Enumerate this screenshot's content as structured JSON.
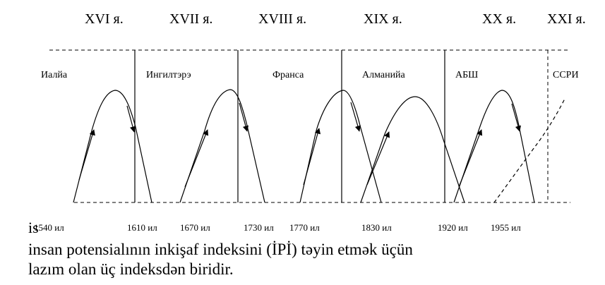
{
  "centuries": [
    "XVI я.",
    "XVII я.",
    "XVIII я.",
    "XIX я.",
    "XX я.",
    "XXI я."
  ],
  "countries": [
    "Иалйа",
    "Ингилтэрэ",
    "Франса",
    "Алманийа",
    "АБШ",
    "ССРИ"
  ],
  "years": [
    "1540 ил",
    "1610 ил",
    "1670 ил",
    "1730 ил",
    "1770 ил",
    "1830 ил",
    "1920 ил",
    "1955 ил"
  ],
  "text_lines": {
    "fragment": "is",
    "line2": "insan potensialının inkişaf indeksini (İPİ) təyin etmək üçün",
    "line3": "lazım olan üç indeksdən biridir."
  }
}
